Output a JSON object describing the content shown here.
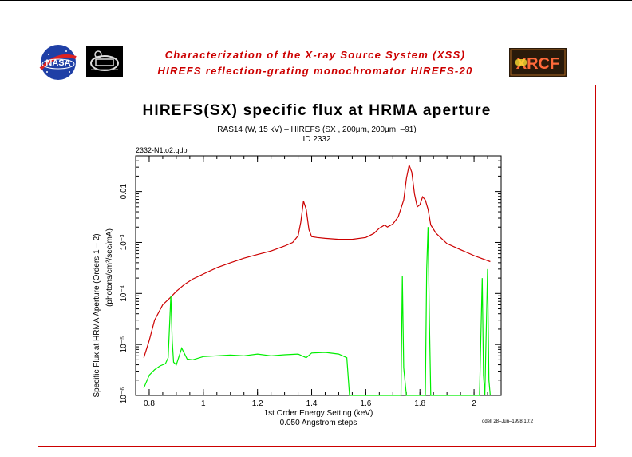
{
  "header": {
    "line1": "Characterization of the X-ray Source System (XSS)",
    "line2": "HIREFS reflection-grating monochromator  HIREFS-20",
    "logos": {
      "nasa_text": "NASA",
      "xrcf_text": "XRCF"
    }
  },
  "chart_data": {
    "type": "line",
    "title": "HIREFS(SX) specific flux at HRMA aperture",
    "subtitle": "RAS14 (W, 15 kV) – HIREFS (SX , 200μm, 200μm, –91)",
    "id_label": "ID 2332",
    "file_label": "2332-N1to2.qdp",
    "xlabel": "1st Order Energy Setting (keV)",
    "xlabel2": "0.050 Angstrom steps",
    "ylabel": "Specific Flux at HRMA Aperture (Orders 1 – 2)",
    "ylabel2": "(photons/cm²/sec/mA)",
    "footer": "odell 28–Jun–1998 10:2",
    "xlim": [
      0.75,
      2.1
    ],
    "ylim": [
      1e-06,
      0.05
    ],
    "yscale": "log",
    "x_ticks": [
      "0.8",
      "1",
      "1.2",
      "1.4",
      "1.6",
      "1.8",
      "2"
    ],
    "y_ticks": [
      "10⁻⁶",
      "10⁻⁵",
      "10⁻⁴",
      "10⁻³",
      "0.01"
    ],
    "grid": false,
    "series": [
      {
        "color": "#cc0000",
        "x": [
          0.78,
          0.8,
          0.82,
          0.85,
          0.88,
          0.9,
          0.93,
          0.96,
          1.0,
          1.05,
          1.1,
          1.15,
          1.2,
          1.25,
          1.3,
          1.33,
          1.35,
          1.36,
          1.37,
          1.38,
          1.39,
          1.4,
          1.42,
          1.45,
          1.5,
          1.55,
          1.6,
          1.63,
          1.65,
          1.67,
          1.68,
          1.7,
          1.72,
          1.74,
          1.75,
          1.76,
          1.77,
          1.78,
          1.79,
          1.8,
          1.81,
          1.82,
          1.83,
          1.84,
          1.86,
          1.9,
          1.95,
          2.0,
          2.03,
          2.06
        ],
        "y": [
          5.5e-06,
          1.2e-05,
          3e-05,
          6e-05,
          8.5e-05,
          0.00011,
          0.00015,
          0.00019,
          0.00024,
          0.00032,
          0.0004,
          0.00049,
          0.00058,
          0.00068,
          0.00085,
          0.001,
          0.00135,
          0.0025,
          0.0065,
          0.0045,
          0.0018,
          0.0013,
          0.00125,
          0.0012,
          0.00115,
          0.00115,
          0.00125,
          0.0015,
          0.0019,
          0.0022,
          0.002,
          0.0023,
          0.0032,
          0.0068,
          0.018,
          0.033,
          0.024,
          0.009,
          0.005,
          0.0055,
          0.0079,
          0.0068,
          0.0045,
          0.0022,
          0.0015,
          0.00095,
          0.00072,
          0.00055,
          0.00048,
          0.00042
        ]
      },
      {
        "color": "#00ee00",
        "x": [
          0.78,
          0.8,
          0.82,
          0.84,
          0.86,
          0.87,
          0.88,
          0.885,
          0.89,
          0.9,
          0.92,
          0.94,
          0.96,
          1.0,
          1.05,
          1.1,
          1.15,
          1.2,
          1.25,
          1.3,
          1.35,
          1.38,
          1.4,
          1.45,
          1.5,
          1.53,
          1.54,
          1.73,
          1.735,
          1.74,
          1.75,
          1.76,
          1.82,
          1.825,
          1.83,
          1.835,
          1.84,
          1.85,
          2.02,
          2.03,
          2.035,
          2.04,
          2.05,
          2.055,
          2.06
        ],
        "y": [
          1.4e-06,
          2.5e-06,
          3.2e-06,
          3.8e-06,
          4.2e-06,
          5.5e-06,
          9e-05,
          1.2e-05,
          4.5e-06,
          4e-06,
          8.5e-06,
          5.2e-06,
          5e-06,
          5.8e-06,
          6e-06,
          6.2e-06,
          6e-06,
          6.5e-06,
          6e-06,
          6.3e-06,
          6.5e-06,
          5.5e-06,
          6.8e-06,
          7e-06,
          6.5e-06,
          5.5e-06,
          1e-06,
          1e-06,
          0.00022,
          3.5e-06,
          1e-06,
          1e-06,
          1e-06,
          0.0003,
          0.002,
          3e-05,
          1e-06,
          1e-06,
          1e-06,
          0.0002,
          2.5e-06,
          1e-06,
          0.0003,
          2e-06,
          1e-06
        ]
      }
    ]
  }
}
